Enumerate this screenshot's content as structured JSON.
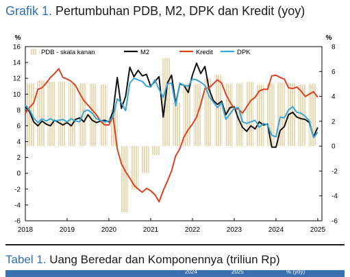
{
  "figure": {
    "label": "Grafik 1.",
    "title": "Pertumbuhan PDB, M2, DPK dan Kredit (yoy)"
  },
  "table": {
    "label": "Tabel 1.",
    "title": "Uang Beredar dan Komponennya (triliun Rp)",
    "headers": [
      "2024",
      "2025",
      "% (yoy)"
    ]
  },
  "chart_data": {
    "type": "line",
    "left_axis": {
      "unit": "%",
      "ylim": [
        -6,
        16
      ],
      "ticks": [
        -6,
        -4,
        -2,
        0,
        2,
        4,
        6,
        8,
        10,
        12,
        14,
        16
      ]
    },
    "right_axis": {
      "unit": "%",
      "ylim": [
        -6,
        8
      ],
      "ticks": [
        -6,
        -4,
        -2,
        0,
        2,
        4,
        6,
        8
      ]
    },
    "x_ticks": [
      "2018",
      "2019",
      "2020",
      "2021",
      "2022",
      "2023",
      "2024",
      "2025"
    ],
    "x_range": [
      2018,
      2025.1
    ],
    "legend": {
      "placement": "top",
      "entries": [
        "PDB - skala kanan",
        "M2",
        "Kredit",
        "DPK"
      ]
    },
    "colors": {
      "pdb": "#ead8b0",
      "m2": "#111111",
      "kredit": "#d9401f",
      "dpk": "#35a6d8"
    },
    "series": [
      {
        "name": "PDB - skala kanan",
        "axis": "right",
        "kind": "bar",
        "x": [
          2018.0,
          2018.25,
          2018.5,
          2018.75,
          2019.0,
          2019.25,
          2019.5,
          2019.75,
          2020.0,
          2020.25,
          2020.5,
          2020.75,
          2021.0,
          2021.25,
          2021.5,
          2021.75,
          2022.0,
          2022.25,
          2022.5,
          2022.75,
          2023.0,
          2023.25,
          2023.5,
          2023.75,
          2024.0,
          2024.25,
          2024.5,
          2024.75
        ],
        "values": [
          5.06,
          5.27,
          5.17,
          5.18,
          5.07,
          5.05,
          5.02,
          4.97,
          2.97,
          -5.32,
          -3.49,
          -2.17,
          -0.71,
          7.07,
          3.51,
          5.02,
          5.02,
          5.46,
          5.72,
          5.01,
          5.04,
          5.17,
          4.94,
          5.04,
          5.11,
          5.05,
          4.95,
          5.02
        ]
      },
      {
        "name": "M2",
        "axis": "left",
        "x": [
          2018.0,
          2018.1,
          2018.2,
          2018.3,
          2018.4,
          2018.5,
          2018.6,
          2018.7,
          2018.8,
          2018.9,
          2019.0,
          2019.1,
          2019.2,
          2019.3,
          2019.4,
          2019.5,
          2019.6,
          2019.7,
          2019.8,
          2019.9,
          2020.0,
          2020.1,
          2020.2,
          2020.3,
          2020.4,
          2020.5,
          2020.6,
          2020.7,
          2020.8,
          2020.9,
          2021.0,
          2021.1,
          2021.2,
          2021.3,
          2021.4,
          2021.5,
          2021.6,
          2021.7,
          2021.8,
          2021.9,
          2022.0,
          2022.1,
          2022.2,
          2022.3,
          2022.4,
          2022.5,
          2022.6,
          2022.7,
          2022.8,
          2022.9,
          2023.0,
          2023.1,
          2023.2,
          2023.3,
          2023.4,
          2023.5,
          2023.6,
          2023.7,
          2023.8,
          2023.9,
          2024.0,
          2024.1,
          2024.2,
          2024.3,
          2024.4,
          2024.5,
          2024.6,
          2024.7,
          2024.8,
          2024.9,
          2025.0
        ],
        "values": [
          8.4,
          7.8,
          6.5,
          6.0,
          6.6,
          6.2,
          6.0,
          6.7,
          6.4,
          6.1,
          6.4,
          6.0,
          6.8,
          7.0,
          6.5,
          7.4,
          6.7,
          6.4,
          6.6,
          6.7,
          6.5,
          7.8,
          12.1,
          8.2,
          9.7,
          13.4,
          12.2,
          13.0,
          12.3,
          12.5,
          11.0,
          11.6,
          12.2,
          7.1,
          11.4,
          12.4,
          8.8,
          11.3,
          11.1,
          10.2,
          12.4,
          13.9,
          12.6,
          13.5,
          10.6,
          9.2,
          8.7,
          9.1,
          7.4,
          8.3,
          8.4,
          6.9,
          5.8,
          5.3,
          6.0,
          5.6,
          6.5,
          6.1,
          6.2,
          3.3,
          3.3,
          5.4,
          5.9,
          7.4,
          7.7,
          7.1,
          6.9,
          6.8,
          6.4,
          4.6,
          5.8
        ]
      },
      {
        "name": "Kredit",
        "axis": "left",
        "x": [
          2018.0,
          2018.1,
          2018.2,
          2018.3,
          2018.4,
          2018.5,
          2018.6,
          2018.7,
          2018.8,
          2018.9,
          2019.0,
          2019.1,
          2019.2,
          2019.3,
          2019.4,
          2019.5,
          2019.6,
          2019.7,
          2019.8,
          2019.9,
          2020.0,
          2020.1,
          2020.2,
          2020.3,
          2020.4,
          2020.5,
          2020.6,
          2020.7,
          2020.8,
          2020.9,
          2021.0,
          2021.1,
          2021.2,
          2021.3,
          2021.4,
          2021.5,
          2021.6,
          2021.7,
          2021.8,
          2021.9,
          2022.0,
          2022.1,
          2022.2,
          2022.3,
          2022.4,
          2022.5,
          2022.6,
          2022.7,
          2022.8,
          2022.9,
          2023.0,
          2023.1,
          2023.2,
          2023.3,
          2023.4,
          2023.5,
          2023.6,
          2023.7,
          2023.8,
          2023.9,
          2024.0,
          2024.1,
          2024.2,
          2024.3,
          2024.4,
          2024.5,
          2024.6,
          2024.7,
          2024.8,
          2024.9,
          2025.0
        ],
        "values": [
          7.6,
          8.3,
          8.9,
          10.6,
          10.8,
          11.4,
          12.1,
          12.6,
          13.2,
          12.1,
          11.9,
          11.6,
          11.1,
          10.1,
          9.2,
          8.6,
          8.0,
          7.4,
          6.6,
          6.1,
          6.1,
          7.2,
          3.1,
          1.2,
          0.2,
          -0.6,
          -1.5,
          -2.0,
          -2.4,
          -1.9,
          -2.2,
          -2.7,
          -3.6,
          -2.2,
          -1.0,
          0.3,
          2.2,
          3.1,
          4.6,
          5.5,
          6.2,
          7.1,
          8.7,
          10.7,
          10.8,
          11.3,
          11.8,
          11.4,
          10.0,
          9.0,
          8.2,
          8.1,
          7.6,
          8.4,
          9.2,
          9.6,
          10.4,
          10.6,
          10.6,
          12.3,
          12.4,
          12.1,
          11.9,
          10.8,
          10.7,
          10.9,
          10.4,
          9.7,
          10.0,
          10.3,
          9.6
        ]
      },
      {
        "name": "DPK",
        "axis": "left",
        "x": [
          2018.0,
          2018.1,
          2018.2,
          2018.3,
          2018.4,
          2018.5,
          2018.6,
          2018.7,
          2018.8,
          2018.9,
          2019.0,
          2019.1,
          2019.2,
          2019.3,
          2019.4,
          2019.5,
          2019.6,
          2019.7,
          2019.8,
          2019.9,
          2020.0,
          2020.1,
          2020.2,
          2020.3,
          2020.4,
          2020.5,
          2020.6,
          2020.7,
          2020.8,
          2020.9,
          2021.0,
          2021.1,
          2021.2,
          2021.3,
          2021.4,
          2021.5,
          2021.6,
          2021.7,
          2021.8,
          2021.9,
          2022.0,
          2022.1,
          2022.2,
          2022.3,
          2022.4,
          2022.5,
          2022.6,
          2022.7,
          2022.8,
          2022.9,
          2023.0,
          2023.1,
          2023.2,
          2023.3,
          2023.4,
          2023.5,
          2023.6,
          2023.7,
          2023.8,
          2023.9,
          2024.0,
          2024.1,
          2024.2,
          2024.3,
          2024.4,
          2024.5,
          2024.6,
          2024.7,
          2024.8,
          2024.9,
          2025.0
        ],
        "values": [
          8.6,
          8.0,
          7.0,
          6.4,
          6.9,
          6.6,
          6.9,
          6.6,
          6.7,
          6.8,
          6.5,
          6.9,
          6.6,
          6.5,
          7.8,
          8.0,
          7.6,
          6.9,
          6.7,
          6.5,
          6.6,
          7.1,
          9.4,
          8.9,
          7.9,
          11.4,
          12.0,
          11.8,
          11.6,
          11.0,
          10.9,
          11.8,
          10.6,
          9.6,
          11.3,
          11.4,
          8.5,
          11.4,
          11.1,
          11.0,
          11.9,
          11.8,
          11.5,
          11.1,
          9.7,
          9.0,
          8.3,
          8.9,
          6.8,
          7.5,
          8.2,
          8.3,
          6.5,
          6.3,
          6.5,
          6.7,
          5.8,
          6.3,
          6.1,
          4.8,
          4.6,
          7.1,
          7.0,
          8.0,
          8.4,
          7.7,
          7.6,
          7.2,
          6.6,
          4.5,
          5.2
        ]
      }
    ]
  }
}
